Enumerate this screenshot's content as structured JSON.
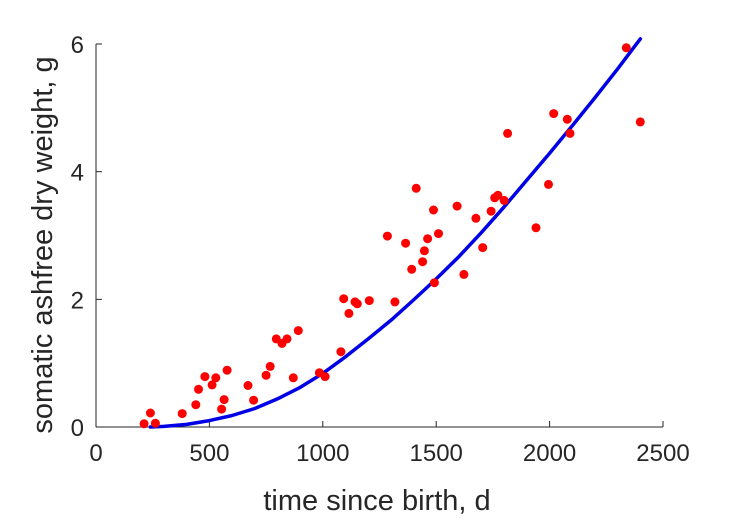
{
  "colors": {
    "points": "#ff0000",
    "fit_line": "#0000e6",
    "axes": "#262626",
    "background": "#ffffff"
  },
  "chart_data": {
    "type": "scatter",
    "title": "",
    "xlabel": "time since birth, d",
    "ylabel": "somatic ashfree dry weight, g",
    "xlim": [
      0,
      2500
    ],
    "ylim": [
      0,
      6
    ],
    "xticks": [
      0,
      500,
      1000,
      1500,
      2000,
      2500
    ],
    "yticks": [
      0,
      2,
      4,
      6
    ],
    "xtick_labels": [
      "0",
      "500",
      "1000",
      "1500",
      "2000",
      "2500"
    ],
    "ytick_labels": [
      "0",
      "2",
      "4",
      "6"
    ],
    "grid": false,
    "legend": "none",
    "series": [
      {
        "kind": "points",
        "x": [
          212,
          240,
          262,
          380,
          440,
          452,
          480,
          512,
          528,
          554,
          565,
          578,
          670,
          695,
          750,
          768,
          795,
          820,
          842,
          870,
          892,
          985,
          1010,
          1080,
          1092,
          1115,
          1142,
          1152,
          1205,
          1285,
          1318,
          1365,
          1392,
          1412,
          1440,
          1448,
          1462,
          1488,
          1492,
          1510,
          1592,
          1622,
          1675,
          1705,
          1742,
          1758,
          1772,
          1800,
          1815,
          1940,
          1995,
          2018,
          2078,
          2090,
          2338,
          2400
        ],
        "y": [
          0.05,
          0.22,
          0.06,
          0.21,
          0.35,
          0.59,
          0.79,
          0.66,
          0.77,
          0.28,
          0.43,
          0.89,
          0.65,
          0.42,
          0.81,
          0.95,
          1.38,
          1.31,
          1.38,
          0.77,
          1.51,
          0.85,
          0.79,
          1.18,
          2.01,
          1.78,
          1.96,
          1.93,
          1.98,
          2.99,
          1.96,
          2.88,
          2.47,
          3.74,
          2.59,
          2.76,
          2.95,
          3.4,
          2.26,
          3.03,
          3.46,
          2.39,
          3.27,
          2.81,
          3.38,
          3.59,
          3.63,
          3.55,
          4.6,
          3.12,
          3.8,
          4.91,
          4.82,
          4.6,
          5.94,
          4.78
        ]
      },
      {
        "kind": "line",
        "x": [
          240,
          300,
          400,
          500,
          600,
          700,
          800,
          900,
          1000,
          1100,
          1200,
          1300,
          1400,
          1500,
          1600,
          1700,
          1800,
          1900,
          2000,
          2100,
          2200,
          2300,
          2400
        ],
        "y": [
          0.0,
          0.01,
          0.04,
          0.1,
          0.18,
          0.29,
          0.44,
          0.62,
          0.84,
          1.1,
          1.38,
          1.67,
          1.99,
          2.32,
          2.67,
          3.05,
          3.45,
          3.87,
          4.29,
          4.72,
          5.16,
          5.61,
          6.08
        ]
      }
    ]
  }
}
